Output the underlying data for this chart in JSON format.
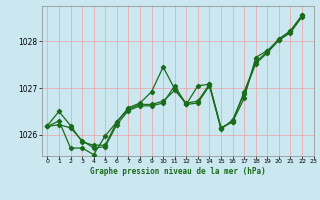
{
  "title": "Graphe pression niveau de la mer (hPa)",
  "background_color": "#cbe8f0",
  "plot_background": "#cbe8f0",
  "grid_color": "#f0a0a0",
  "line_color": "#1a6b1a",
  "marker_color": "#1a6b1a",
  "xlim": [
    -0.5,
    23
  ],
  "ylim": [
    1025.55,
    1028.75
  ],
  "yticks": [
    1026,
    1027,
    1028
  ],
  "xticks": [
    0,
    1,
    2,
    3,
    4,
    5,
    6,
    7,
    8,
    9,
    10,
    11,
    12,
    13,
    14,
    15,
    16,
    17,
    18,
    19,
    20,
    21,
    22,
    23
  ],
  "line1_x": [
    0,
    1,
    2,
    3,
    4,
    5,
    6,
    7,
    8,
    9,
    10,
    11,
    12,
    13,
    14,
    15,
    16,
    17,
    18,
    19,
    20,
    21,
    22
  ],
  "line1_y": [
    1026.2,
    1026.5,
    1026.2,
    1025.85,
    1025.78,
    1025.78,
    1026.28,
    1026.55,
    1026.65,
    1026.65,
    1026.72,
    1026.95,
    1026.68,
    1026.72,
    1027.08,
    1026.15,
    1026.28,
    1026.92,
    1027.55,
    1027.78,
    1028.05,
    1028.22,
    1028.55
  ],
  "line2_x": [
    0,
    1,
    2,
    3,
    4,
    5,
    6,
    7,
    8,
    9,
    10,
    11,
    12,
    13,
    14,
    15,
    16,
    17,
    18,
    19,
    20,
    21,
    22
  ],
  "line2_y": [
    1026.18,
    1026.3,
    1025.72,
    1025.72,
    1025.58,
    1025.98,
    1026.28,
    1026.58,
    1026.68,
    1026.92,
    1027.45,
    1026.98,
    1026.65,
    1027.05,
    1027.08,
    1026.15,
    1026.28,
    1026.78,
    1027.65,
    1027.8,
    1028.02,
    1028.22,
    1028.55
  ],
  "line3_x": [
    0,
    1,
    2,
    3,
    4,
    5,
    6,
    7,
    8,
    9,
    10,
    11,
    12,
    13,
    14,
    15,
    16,
    17,
    18,
    19,
    20,
    21,
    22
  ],
  "line3_y": [
    1026.18,
    1026.22,
    1026.15,
    1025.88,
    1025.72,
    1025.75,
    1026.22,
    1026.52,
    1026.62,
    1026.62,
    1026.68,
    1027.05,
    1026.65,
    1026.68,
    1027.05,
    1026.12,
    1026.32,
    1026.88,
    1027.52,
    1027.75,
    1028.02,
    1028.18,
    1028.52
  ]
}
